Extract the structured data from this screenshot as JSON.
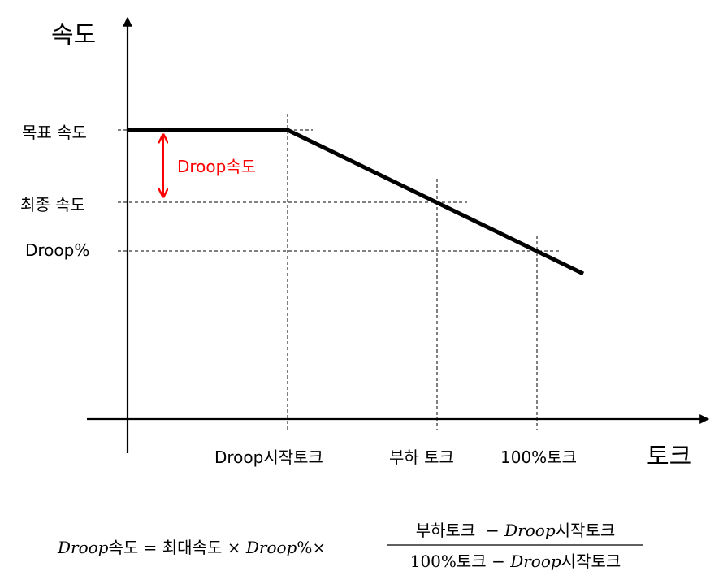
{
  "axes": {
    "y_title": "속도",
    "x_title": "토크"
  },
  "y_labels": {
    "target_speed": "목표 속도",
    "final_speed": "최종 속도",
    "droop_percent": "Droop%"
  },
  "x_labels": {
    "droop_start_torque": "Droop시작토크",
    "load_torque": "부하 토크",
    "full_torque": "100%토크"
  },
  "annotation": {
    "droop_speed": "Droop속도",
    "color": "#ff0000"
  },
  "formula": {
    "lhs_italic": "Droop",
    "lhs_rest": "속도",
    "equals": "=",
    "term1": "최대속도",
    "times1": "×",
    "term2_italic": "Droop",
    "term2_rest": "%",
    "times2": "×",
    "numerator_a": "부하토크",
    "numerator_minus": "−",
    "numerator_b_italic": "Droop",
    "numerator_b_rest": "시작토크",
    "denominator_a": "100%토크",
    "denominator_minus": "−",
    "denominator_b_italic": "Droop",
    "denominator_b_rest": "시작토크"
  }
}
